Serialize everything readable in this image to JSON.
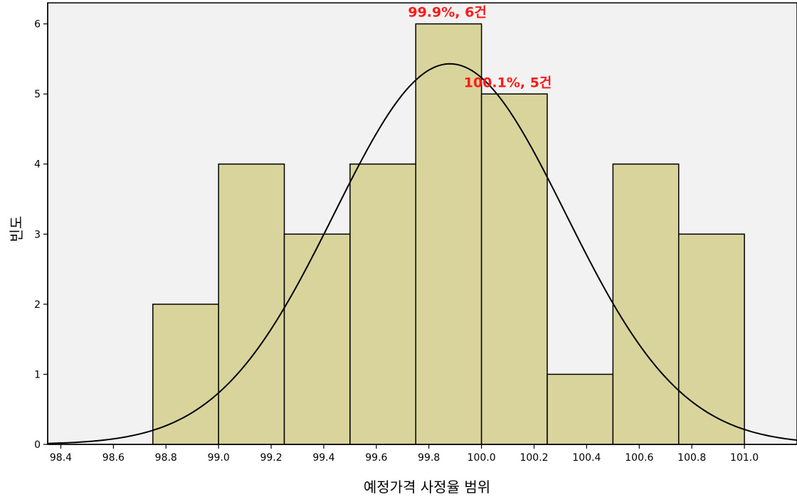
{
  "chart_data": {
    "type": "bar",
    "subtype": "histogram",
    "xlabel": "예정가격 사정율 범위",
    "ylabel": "빈도",
    "xlim": [
      98.35,
      101.2
    ],
    "ylim": [
      0,
      6.3
    ],
    "x_ticks": [
      98.4,
      98.6,
      98.8,
      99.0,
      99.2,
      99.4,
      99.6,
      99.8,
      100.0,
      100.2,
      100.4,
      100.6,
      100.8,
      101.0
    ],
    "x_tick_labels": [
      "98.4",
      "98.6",
      "98.8",
      "99.0",
      "99.2",
      "99.4",
      "99.6",
      "99.8",
      "100.0",
      "100.2",
      "100.4",
      "100.6",
      "100.8",
      "101.0"
    ],
    "y_ticks": [
      0,
      1,
      2,
      3,
      4,
      5,
      6
    ],
    "y_tick_labels": [
      "0",
      "1",
      "2",
      "3",
      "4",
      "5",
      "6"
    ],
    "bins": [
      {
        "start": 98.75,
        "end": 99.0,
        "count": 2
      },
      {
        "start": 99.0,
        "end": 99.25,
        "count": 4
      },
      {
        "start": 99.25,
        "end": 99.5,
        "count": 3
      },
      {
        "start": 99.5,
        "end": 99.75,
        "count": 4
      },
      {
        "start": 99.75,
        "end": 100.0,
        "count": 6
      },
      {
        "start": 100.0,
        "end": 100.25,
        "count": 5
      },
      {
        "start": 100.25,
        "end": 100.5,
        "count": 1
      },
      {
        "start": 100.5,
        "end": 100.75,
        "count": 4
      },
      {
        "start": 100.75,
        "end": 101.0,
        "count": 3
      }
    ],
    "normal_curve": {
      "mean": 99.88,
      "sd": 0.44,
      "peak": 5.43
    },
    "annotations": [
      {
        "text": "99.9%, 6건",
        "x": 99.87,
        "y": 6.1
      },
      {
        "text": "100.1%, 5건",
        "x": 100.1,
        "y": 5.1
      }
    ],
    "colors": {
      "bar_fill": "#d9d49c",
      "bar_stroke": "#000000",
      "plot_bg": "#f2f2f2",
      "curve": "#000000",
      "annotation": "#ff1a1a"
    },
    "grid": false
  }
}
